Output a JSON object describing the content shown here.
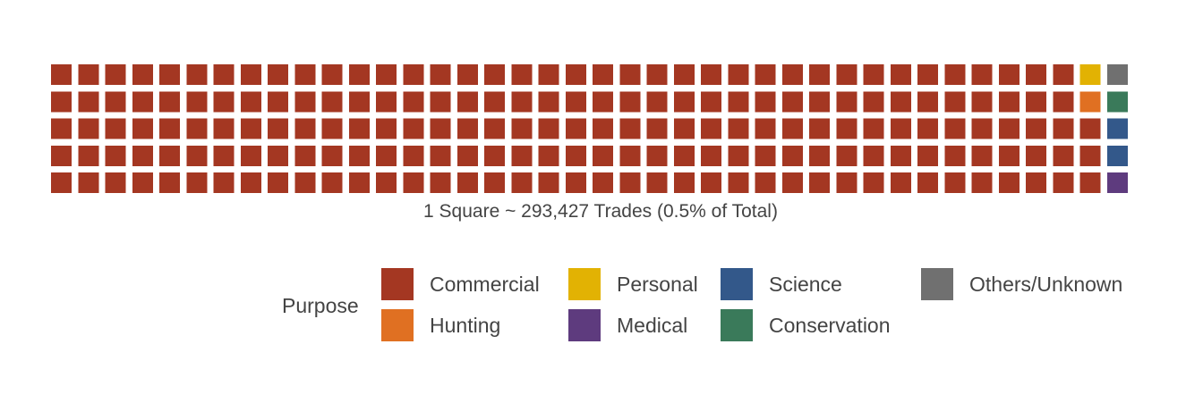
{
  "chart_data": {
    "type": "waffle",
    "grid": {
      "columns": 40,
      "rows": 5
    },
    "caption": "1 Square ~ 293,427 Trades (0.5% of Total)",
    "legend_title": "Purpose",
    "categories": [
      {
        "name": "Commercial",
        "squares": 192,
        "color": "#a43722"
      },
      {
        "name": "Hunting",
        "squares": 1,
        "color": "#e07022"
      },
      {
        "name": "Personal",
        "squares": 1,
        "color": "#e2b203"
      },
      {
        "name": "Medical",
        "squares": 1,
        "color": "#5e3b7e"
      },
      {
        "name": "Science",
        "squares": 2,
        "color": "#33588a"
      },
      {
        "name": "Conservation",
        "squares": 1,
        "color": "#3a7a5a"
      },
      {
        "name": "Others/Unknown",
        "squares": 1,
        "color": "#707070"
      }
    ],
    "cells": [
      "Commercial",
      "Commercial",
      "Commercial",
      "Commercial",
      "Commercial",
      "Commercial",
      "Commercial",
      "Commercial",
      "Commercial",
      "Commercial",
      "Commercial",
      "Commercial",
      "Commercial",
      "Commercial",
      "Commercial",
      "Commercial",
      "Commercial",
      "Commercial",
      "Commercial",
      "Commercial",
      "Commercial",
      "Commercial",
      "Commercial",
      "Commercial",
      "Commercial",
      "Commercial",
      "Commercial",
      "Commercial",
      "Commercial",
      "Commercial",
      "Commercial",
      "Commercial",
      "Commercial",
      "Commercial",
      "Commercial",
      "Commercial",
      "Commercial",
      "Commercial",
      "Commercial",
      "Commercial",
      "Commercial",
      "Commercial",
      "Commercial",
      "Commercial",
      "Commercial",
      "Commercial",
      "Commercial",
      "Commercial",
      "Commercial",
      "Commercial",
      "Commercial",
      "Commercial",
      "Commercial",
      "Commercial",
      "Commercial",
      "Commercial",
      "Commercial",
      "Commercial",
      "Commercial",
      "Commercial",
      "Commercial",
      "Commercial",
      "Commercial",
      "Commercial",
      "Commercial",
      "Commercial",
      "Commercial",
      "Commercial",
      "Commercial",
      "Commercial",
      "Commercial",
      "Commercial",
      "Commercial",
      "Commercial",
      "Commercial",
      "Commercial",
      "Commercial",
      "Commercial",
      "Commercial",
      "Commercial",
      "Commercial",
      "Commercial",
      "Commercial",
      "Commercial",
      "Commercial",
      "Commercial",
      "Commercial",
      "Commercial",
      "Commercial",
      "Commercial",
      "Commercial",
      "Commercial",
      "Commercial",
      "Commercial",
      "Commercial",
      "Commercial",
      "Commercial",
      "Commercial",
      "Commercial",
      "Commercial",
      "Commercial",
      "Commercial",
      "Commercial",
      "Commercial",
      "Commercial",
      "Commercial",
      "Commercial",
      "Commercial",
      "Commercial",
      "Commercial",
      "Commercial",
      "Commercial",
      "Commercial",
      "Commercial",
      "Commercial",
      "Commercial",
      "Commercial",
      "Commercial",
      "Commercial",
      "Commercial",
      "Commercial",
      "Commercial",
      "Commercial",
      "Commercial",
      "Commercial",
      "Commercial",
      "Commercial",
      "Commercial",
      "Commercial",
      "Commercial",
      "Commercial",
      "Commercial",
      "Commercial",
      "Commercial",
      "Commercial",
      "Commercial",
      "Commercial",
      "Commercial",
      "Commercial",
      "Commercial",
      "Commercial",
      "Commercial",
      "Commercial",
      "Commercial",
      "Commercial",
      "Commercial",
      "Commercial",
      "Commercial",
      "Commercial",
      "Commercial",
      "Commercial",
      "Commercial",
      "Commercial",
      "Commercial",
      "Commercial",
      "Commercial",
      "Commercial",
      "Commercial",
      "Commercial",
      "Commercial",
      "Commercial",
      "Commercial",
      "Commercial",
      "Commercial",
      "Commercial",
      "Commercial",
      "Commercial",
      "Commercial",
      "Commercial",
      "Commercial",
      "Commercial",
      "Commercial",
      "Commercial",
      "Commercial",
      "Commercial",
      "Commercial",
      "Commercial",
      "Commercial",
      "Commercial",
      "Commercial",
      "Commercial",
      "Commercial",
      "Commercial",
      "Commercial",
      "Commercial",
      "Commercial",
      "Commercial",
      "Commercial",
      "Commercial",
      "Commercial",
      "Personal",
      "Hunting",
      "Commercial",
      "Commercial",
      "Commercial",
      "Others/Unknown",
      "Conservation",
      "Science",
      "Science",
      "Medical"
    ],
    "legend_layout": [
      [
        "Commercial",
        "Personal",
        "Science",
        "Others/Unknown"
      ],
      [
        "Hunting",
        "Medical",
        "Conservation"
      ]
    ]
  }
}
